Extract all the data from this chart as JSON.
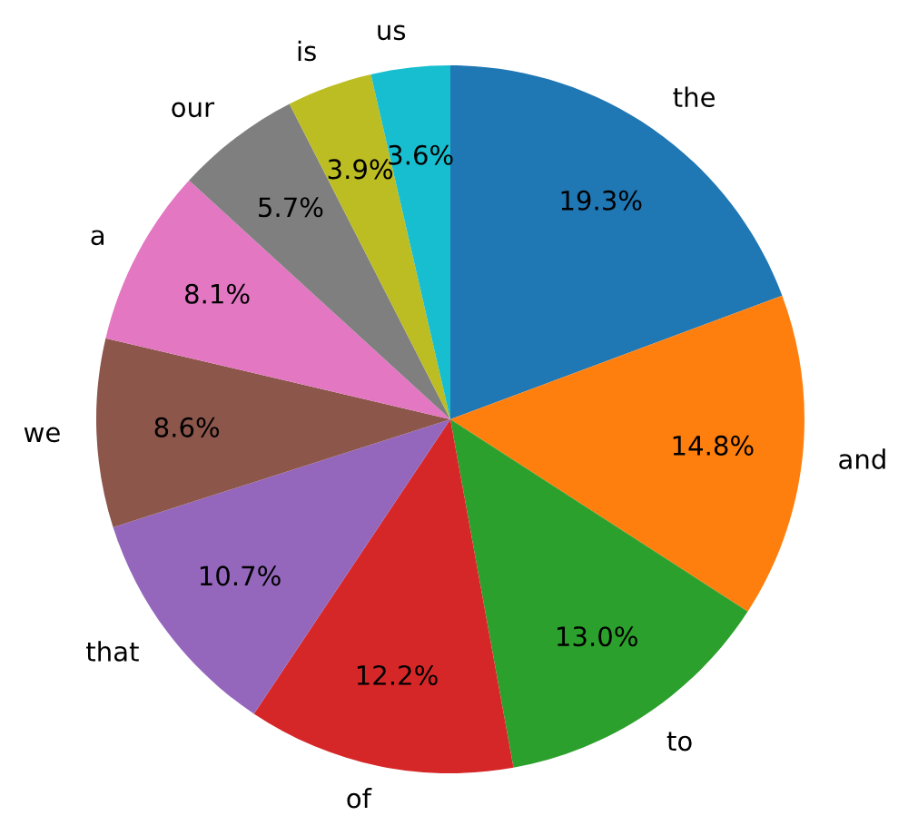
{
  "chart_data": {
    "type": "pie",
    "categories": [
      "the",
      "and",
      "to",
      "of",
      "that",
      "we",
      "a",
      "our",
      "is",
      "us"
    ],
    "values": [
      19.3,
      14.8,
      13.0,
      12.2,
      10.7,
      8.6,
      8.1,
      5.7,
      3.9,
      3.6
    ],
    "value_labels": [
      "19.3%",
      "14.8%",
      "13.0%",
      "12.2%",
      "10.7%",
      "8.6%",
      "8.1%",
      "5.7%",
      "3.9%",
      "3.6%"
    ],
    "colors": [
      "#1f77b4",
      "#ff7f0e",
      "#2ca02c",
      "#d62728",
      "#9467bd",
      "#8c564b",
      "#e377c2",
      "#7f7f7f",
      "#bcbd22",
      "#17becf"
    ]
  }
}
